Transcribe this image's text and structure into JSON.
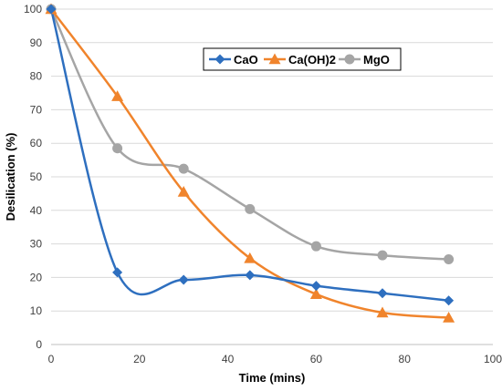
{
  "chart_data": {
    "type": "line",
    "title": "",
    "xlabel": "Time (mins)",
    "ylabel": "Desilication (%)",
    "xlim": [
      0,
      100
    ],
    "ylim": [
      0,
      100
    ],
    "xticks": [
      "0",
      "20",
      "40",
      "60",
      "80",
      "100"
    ],
    "yticks": [
      "0",
      "10",
      "20",
      "30",
      "40",
      "50",
      "60",
      "70",
      "80",
      "90",
      "100"
    ],
    "grid": "horizontal",
    "smooth": true,
    "legend_position": "top-right",
    "x": [
      0,
      15,
      30,
      45,
      60,
      75,
      90
    ],
    "series": [
      {
        "name": "CaO",
        "values": [
          100,
          21.5,
          19.3,
          20.7,
          17.5,
          15.3,
          13.1
        ],
        "color": "#2E6FBF",
        "marker": "diamond"
      },
      {
        "name": "Ca(OH)2",
        "values": [
          100,
          74,
          45.5,
          25.7,
          15,
          9.5,
          8
        ],
        "color": "#F0842C",
        "marker": "triangle"
      },
      {
        "name": "MgO",
        "values": [
          100,
          58.5,
          52.4,
          40.4,
          29.3,
          26.6,
          25.4
        ],
        "color": "#A5A5A5",
        "marker": "circle"
      }
    ]
  }
}
